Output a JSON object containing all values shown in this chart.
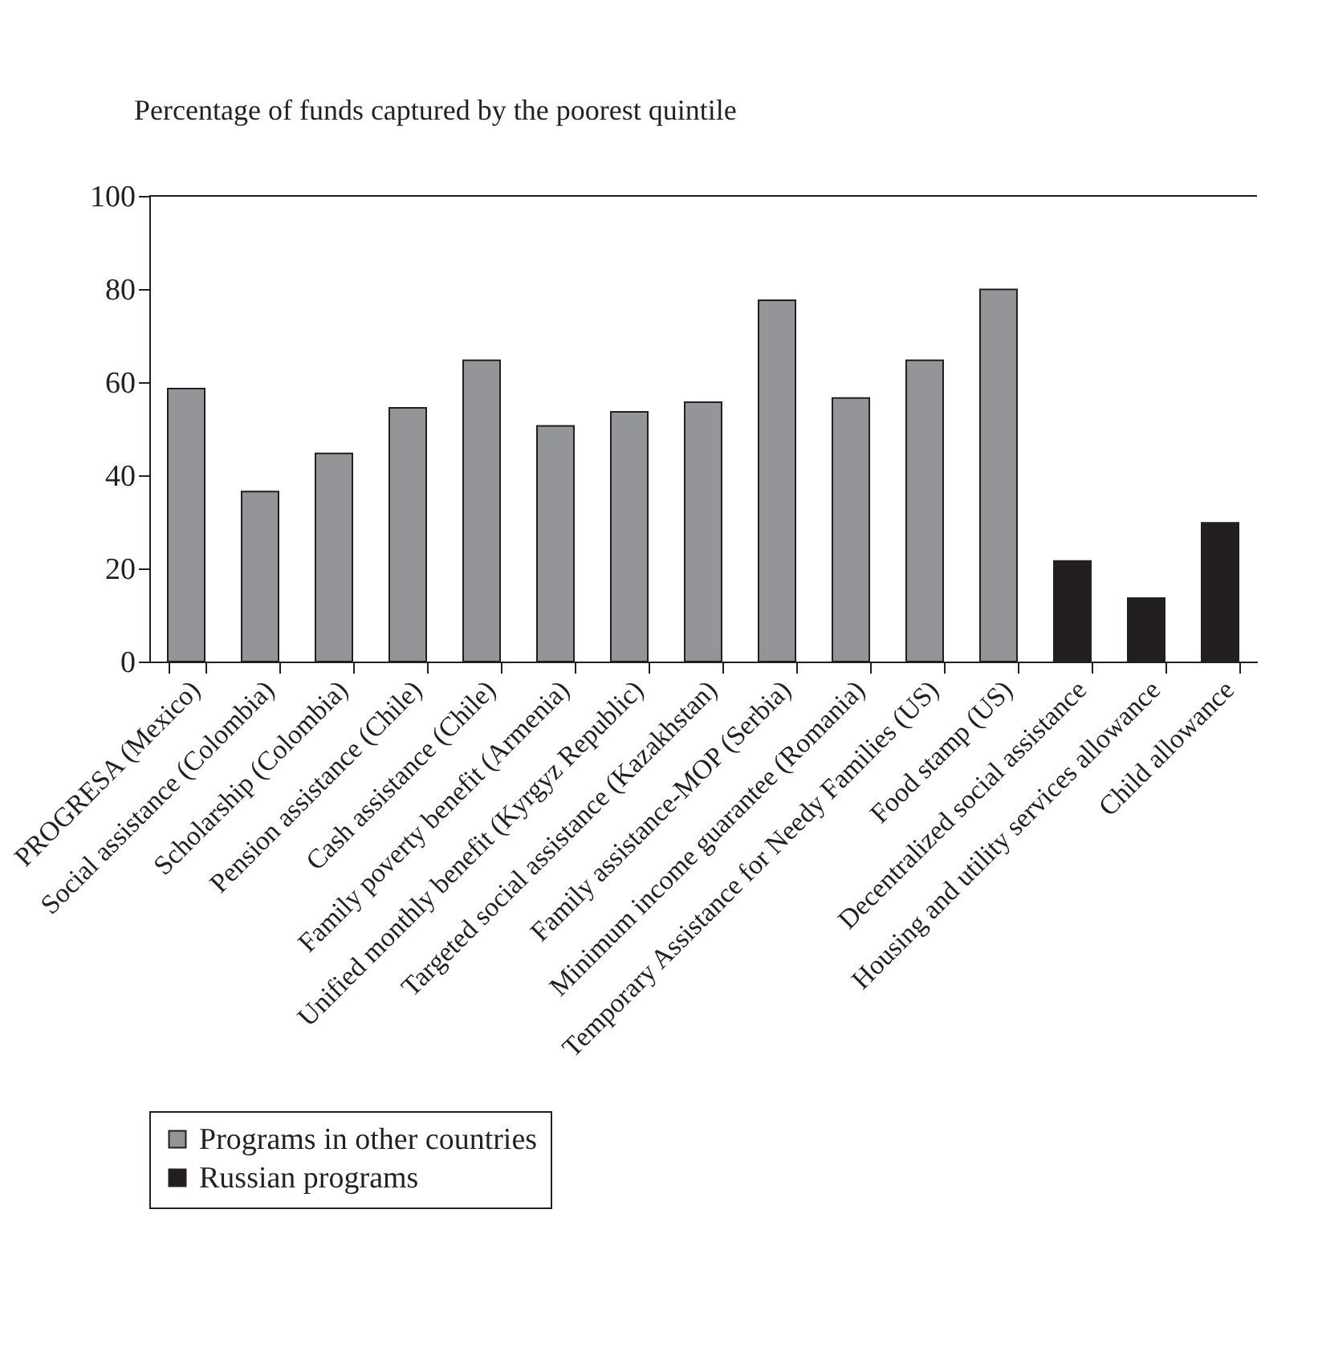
{
  "chart_data": {
    "type": "bar",
    "ylabel": "Percentage of funds captured by the poorest quintile",
    "categories": [
      "PROGRESA (Mexico)",
      "Social assistance (Colombia)",
      "Scholarship (Colombia)",
      "Pension assistance (Chile)",
      "Cash assistance (Chile)",
      "Family poverty benefit (Armenia)",
      "Unified monthly benefit (Kyrgyz Republic)",
      "Targeted social assistance (Kazakhstan)",
      "Family assistance-MOP (Serbia)",
      "Minimum income guarantee (Romania)",
      "Temporary Assistance for Needy Families (US)",
      "Food stamp (US)",
      "Decentralized social assistance",
      "Housing and utility services allowance",
      "Child allowance"
    ],
    "series": [
      {
        "name": "Programs in other countries",
        "color": "#939598",
        "values": [
          58.6,
          36.5,
          44.7,
          54.5,
          64.7,
          50.6,
          53.6,
          55.7,
          77.6,
          56.6,
          64.7,
          79.9,
          null,
          null,
          null
        ]
      },
      {
        "name": "Russian programs",
        "color": "#231f20",
        "values": [
          null,
          null,
          null,
          null,
          null,
          null,
          null,
          null,
          null,
          null,
          null,
          null,
          21.6,
          13.6,
          29.8
        ]
      }
    ],
    "ylim": [
      0,
      100
    ],
    "yticks": [
      0,
      20,
      40,
      60,
      80,
      100
    ],
    "grid": false,
    "legend": "bottom"
  }
}
